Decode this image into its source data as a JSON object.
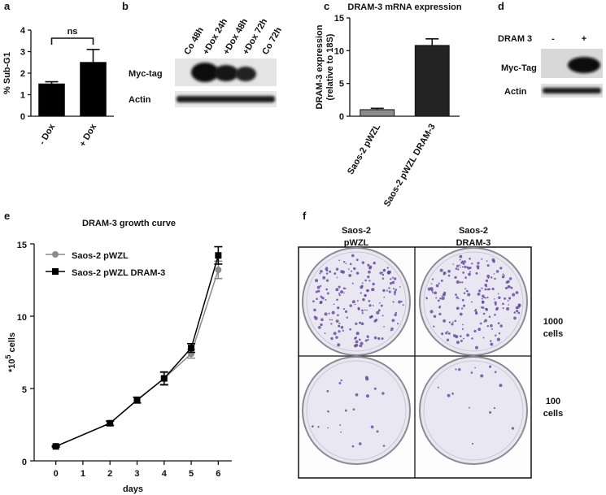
{
  "panel_labels": [
    "a",
    "b",
    "c",
    "d",
    "e",
    "f"
  ],
  "chart_data": [
    {
      "type": "bar",
      "ylabel": "% Sub-G1",
      "categories": [
        "- Dox",
        "+ Dox"
      ],
      "values": [
        1.5,
        2.5
      ],
      "errors": [
        0.1,
        0.6
      ],
      "color": "#000000",
      "ylim": [
        0,
        4
      ],
      "yticks": [
        0,
        1,
        2,
        3,
        4
      ],
      "annotation": "ns"
    },
    {
      "type": "bar",
      "title": "DRAM-3 mRNA expression",
      "ylabel": [
        "DRAM-3 expression",
        "(relative to 18S)"
      ],
      "categories": [
        "Saos-2 pWZL",
        "Saos-2 pWZL DRAM-3"
      ],
      "values": [
        1,
        10.8
      ],
      "errors": [
        0.2,
        1.0
      ],
      "colors": [
        "#8c8c8c",
        "#232323"
      ],
      "ylim": [
        0,
        15
      ],
      "yticks": [
        0,
        5,
        10,
        15
      ]
    },
    {
      "type": "line",
      "title": "DRAM-3 growth curve",
      "xlabel": "days",
      "ylabel": "*10",
      "ylabel_superscript": "5",
      "ylabel_unit": "cells",
      "x": [
        0,
        2,
        3,
        4,
        5,
        6
      ],
      "xlim": [
        -0.8,
        6.5
      ],
      "xticks": [
        0,
        1,
        2,
        3,
        4,
        5,
        6
      ],
      "ylim": [
        0,
        15
      ],
      "yticks": [
        0,
        5,
        10,
        15
      ],
      "legend": "top-left",
      "series": [
        {
          "name": "Saos-2 pWZL",
          "color": "#8c8c8c",
          "marker": "circle",
          "values": [
            1,
            2.6,
            4.2,
            5.7,
            7.4,
            13.2
          ],
          "errors": [
            0.05,
            0.15,
            0.2,
            0.4,
            0.3,
            0.6
          ]
        },
        {
          "name": "Saos-2 pWZL DRAM-3",
          "color": "#000000",
          "marker": "square",
          "values": [
            1,
            2.6,
            4.2,
            5.7,
            7.8,
            14.2
          ],
          "errors": [
            0.05,
            0.15,
            0.2,
            0.45,
            0.3,
            0.6
          ]
        }
      ]
    }
  ],
  "blot_b": {
    "lanes": [
      "Co 48h",
      "+Dox 24h",
      "+Dox 48h",
      "+Dox 72h",
      "Co 72h"
    ],
    "rows": [
      "Myc-tag",
      "Actin"
    ]
  },
  "blot_d": {
    "header": "DRAM 3",
    "lanes": [
      "-",
      "+"
    ],
    "rows": [
      "Myc-Tag",
      "Actin"
    ]
  },
  "colony_f": {
    "columns": [
      [
        "Saos-2",
        "pWZL"
      ],
      [
        "Saos-2",
        "DRAM-3"
      ]
    ],
    "rows": [
      [
        "1000",
        "cells"
      ],
      [
        "100",
        "cells"
      ]
    ]
  }
}
